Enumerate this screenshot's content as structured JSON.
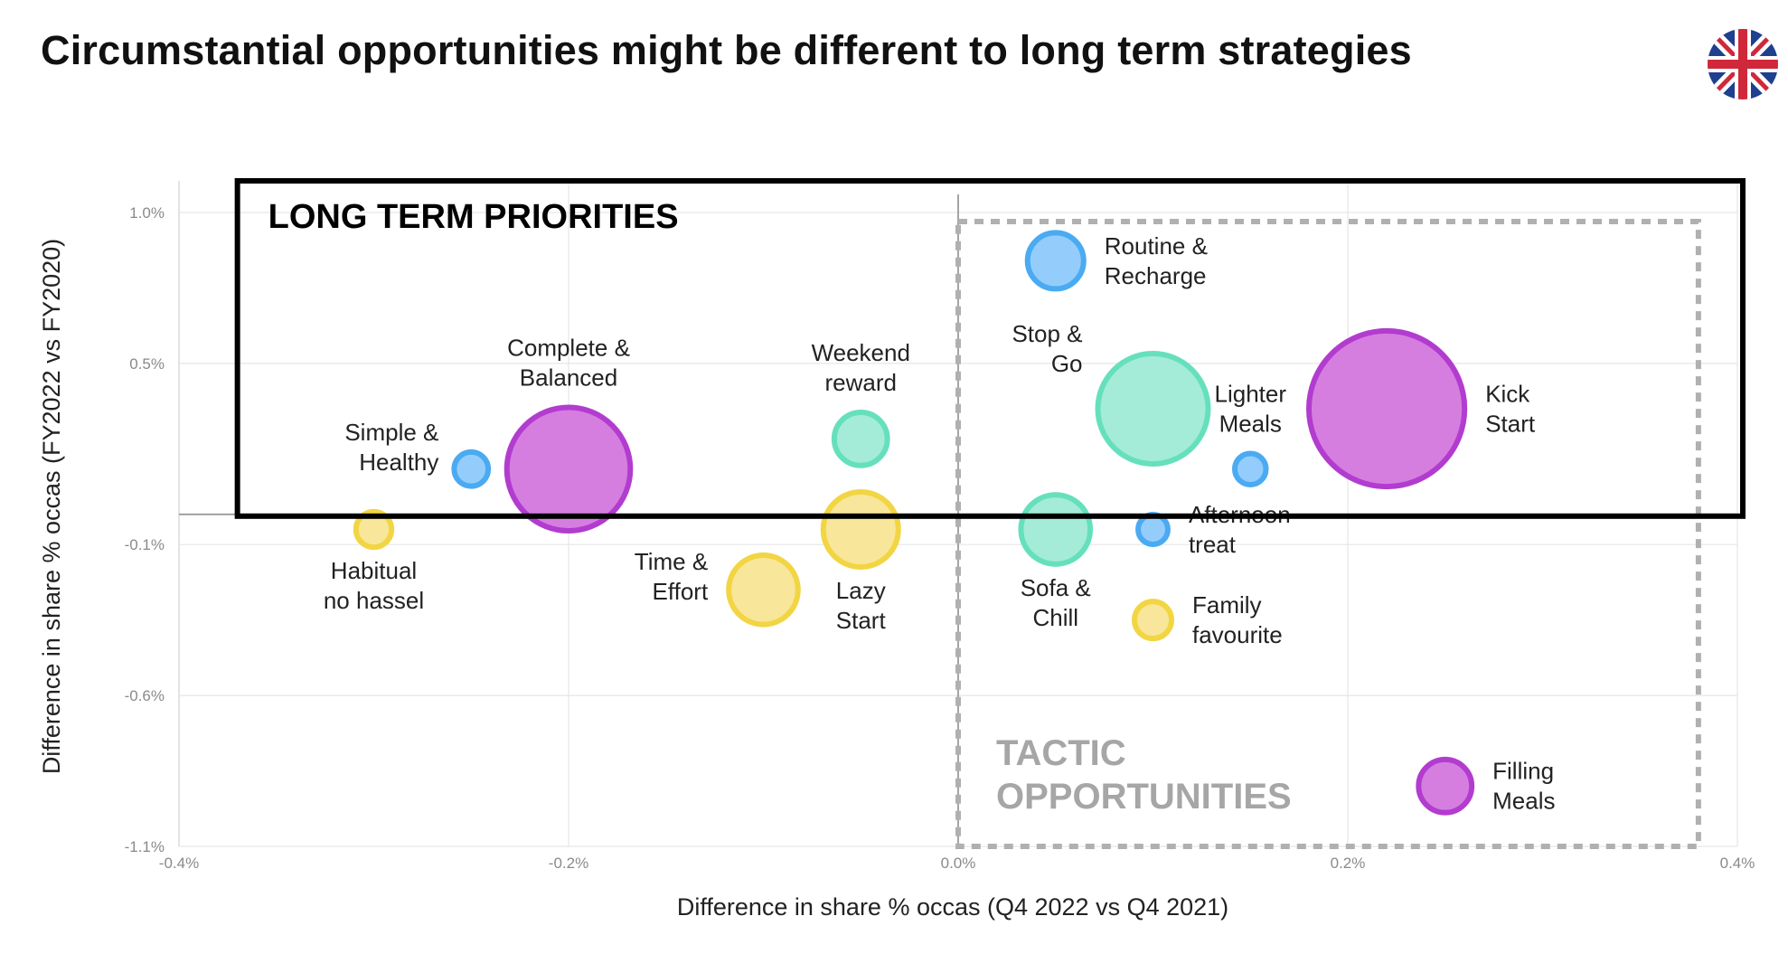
{
  "title": "Circumstantial opportunities might be different to long term strategies",
  "flag_icon": "uk-flag-icon",
  "chart_data": {
    "type": "scatter",
    "bubble": true,
    "xlabel": "Difference in share % occas  (Q4 2022 vs Q4 2021)",
    "ylabel": "Difference in share % occas  (FY2022 vs FY2020)",
    "xlim": [
      -0.4,
      0.4
    ],
    "ylim": [
      -1.1,
      1.0
    ],
    "x_ticks": [
      {
        "value": -0.4,
        "label": "-0.4%"
      },
      {
        "value": -0.2,
        "label": "-0.2%"
      },
      {
        "value": 0.0,
        "label": "0.0%"
      },
      {
        "value": 0.2,
        "label": "0.2%"
      },
      {
        "value": 0.4,
        "label": "0.4%"
      }
    ],
    "y_ticks": [
      {
        "value": 1.0,
        "label": "1.0%"
      },
      {
        "value": 0.5,
        "label": "0.5%"
      },
      {
        "value": -0.1,
        "label": "-0.1%"
      },
      {
        "value": -0.6,
        "label": "-0.6%"
      },
      {
        "value": -1.1,
        "label": "-1.1%"
      }
    ],
    "grid": true,
    "colors": {
      "purple": {
        "fill": "#d57ee0",
        "stroke": "#b23ccf"
      },
      "green": {
        "fill": "#a4ecd8",
        "stroke": "#66e0bc"
      },
      "blue": {
        "fill": "#94cdfb",
        "stroke": "#4aaaf2"
      },
      "yellow": {
        "fill": "#f8e69a",
        "stroke": "#f2d543"
      }
    },
    "points": [
      {
        "label": "Routine &\nRecharge",
        "x": 0.05,
        "y": 0.84,
        "size": 4.2,
        "color": "blue",
        "label_pos": "right"
      },
      {
        "label": "Weekend\nreward",
        "x": -0.05,
        "y": 0.25,
        "size": 4.0,
        "color": "green",
        "label_pos": "top"
      },
      {
        "label": "Complete &\nBalanced",
        "x": -0.2,
        "y": 0.15,
        "size": 8.8,
        "color": "purple",
        "label_pos": "top"
      },
      {
        "label": "Simple &\nHealthy",
        "x": -0.25,
        "y": 0.15,
        "size": 2.7,
        "color": "blue",
        "label_pos": "left-up"
      },
      {
        "label": "Stop &\nGo",
        "x": 0.1,
        "y": 0.35,
        "size": 7.9,
        "color": "green",
        "label_pos": "left-up"
      },
      {
        "label": "Lighter\nMeals",
        "x": 0.15,
        "y": 0.15,
        "size": 2.5,
        "color": "blue",
        "label_pos": "top"
      },
      {
        "label": "Kick\nStart",
        "x": 0.22,
        "y": 0.35,
        "size": 11.0,
        "color": "purple",
        "label_pos": "right"
      },
      {
        "label": "Habitual\nno hassel",
        "x": -0.3,
        "y": -0.05,
        "size": 2.8,
        "color": "yellow",
        "label_pos": "bottom"
      },
      {
        "label": "Time &\nEffort",
        "x": -0.1,
        "y": -0.25,
        "size": 5.1,
        "color": "yellow",
        "label_pos": "left"
      },
      {
        "label": "Lazy\nStart",
        "x": -0.05,
        "y": -0.05,
        "size": 5.5,
        "color": "yellow",
        "label_pos": "bottom"
      },
      {
        "label": "Sofa &\nChill",
        "x": 0.05,
        "y": -0.05,
        "size": 5.1,
        "color": "green",
        "label_pos": "bottom"
      },
      {
        "label": "Afternoon\ntreat",
        "x": 0.1,
        "y": -0.05,
        "size": 2.4,
        "color": "blue",
        "label_pos": "right"
      },
      {
        "label": "Family\nfavourite",
        "x": 0.1,
        "y": -0.35,
        "size": 2.9,
        "color": "yellow",
        "label_pos": "right"
      },
      {
        "label": "Filling\nMeals",
        "x": 0.25,
        "y": -0.9,
        "size": 4.0,
        "color": "purple",
        "label_pos": "right"
      }
    ],
    "annotations": [
      {
        "text": "LONG TERM PRIORITIES",
        "style": "solid-box",
        "color": "#000000"
      },
      {
        "text": "TACTIC\nOPPORTUNITIES",
        "style": "dashed-box",
        "color": "#a6a6a6"
      }
    ]
  }
}
